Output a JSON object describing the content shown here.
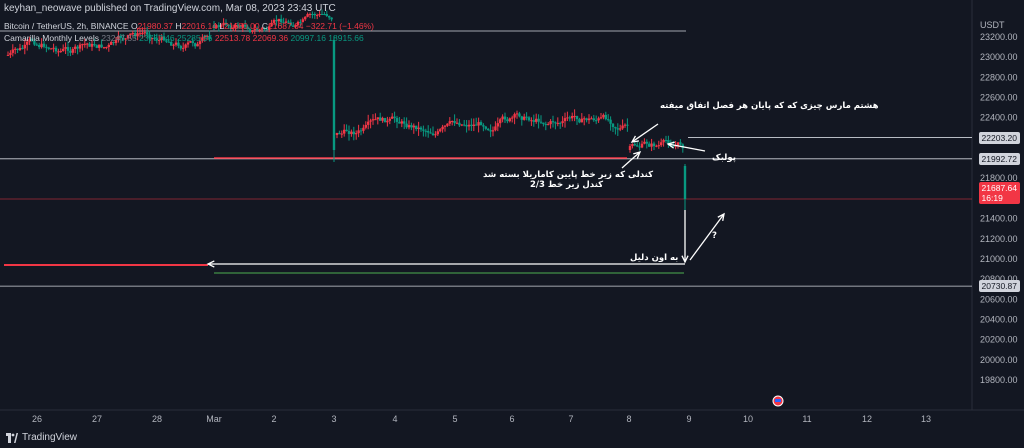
{
  "header": {
    "published_by": "keyhan_neowave published on TradingView.com, Mar 08, 2023 23:43 UTC"
  },
  "legend": {
    "symbol_line": {
      "symbol": "Bitcoin / TetherUS, 2h, BINANCE",
      "open_label": "O",
      "open": "21980.37",
      "high_label": "H",
      "high": "22016.14",
      "low_label": "L",
      "low": "21680.00",
      "close_label": "C",
      "close": "21687.64",
      "change": "−322.71 (−1.46%)"
    },
    "indicator_line": {
      "name": "Camarilla Monthly Levels",
      "values": [
        "23247.55",
        "23767.46",
        "25285.96",
        "22513.78",
        "22069.36",
        "20997.16",
        "18915.66"
      ]
    }
  },
  "y_axis": {
    "currency": "USDT",
    "ticks": [
      "23200.00",
      "23000.00",
      "22800.00",
      "22600.00",
      "22400.00",
      "22200.00",
      "22000.00",
      "21800.00",
      "21600.00",
      "21400.00",
      "21200.00",
      "21000.00",
      "20800.00",
      "20600.00",
      "20400.00",
      "20200.00",
      "20000.00",
      "19800.00"
    ],
    "price_tags": [
      {
        "price": "22203.20",
        "style": "white"
      },
      {
        "price": "21992.72",
        "style": "white"
      },
      {
        "price": "21687.64",
        "countdown": "16:19",
        "style": "red"
      },
      {
        "price": "20730.87",
        "style": "white"
      }
    ]
  },
  "x_axis": {
    "ticks": [
      "26",
      "27",
      "28",
      "Mar",
      "2",
      "3",
      "4",
      "5",
      "6",
      "7",
      "8",
      "9",
      "10",
      "11",
      "12",
      "13"
    ]
  },
  "annotations": {
    "march8": "هشتم مارس چیزی که که پایان هر فصل اتفاق میفته",
    "pullback": "پولبک",
    "candle_close": "کندلی که زیر خط پایین کاماریلا بسته شد",
    "candle_close_2": "کندل زیر خط 2/3",
    "target": "به اون دلیل",
    "question": "?"
  },
  "footer": {
    "brand": "TradingView"
  },
  "colors": {
    "background": "#131722",
    "up": "#089981",
    "down": "#f23645",
    "grid": "#2a2e39",
    "line_white": "#d1d4dc",
    "line_red": "#f23645",
    "line_green": "#4caf50"
  }
}
